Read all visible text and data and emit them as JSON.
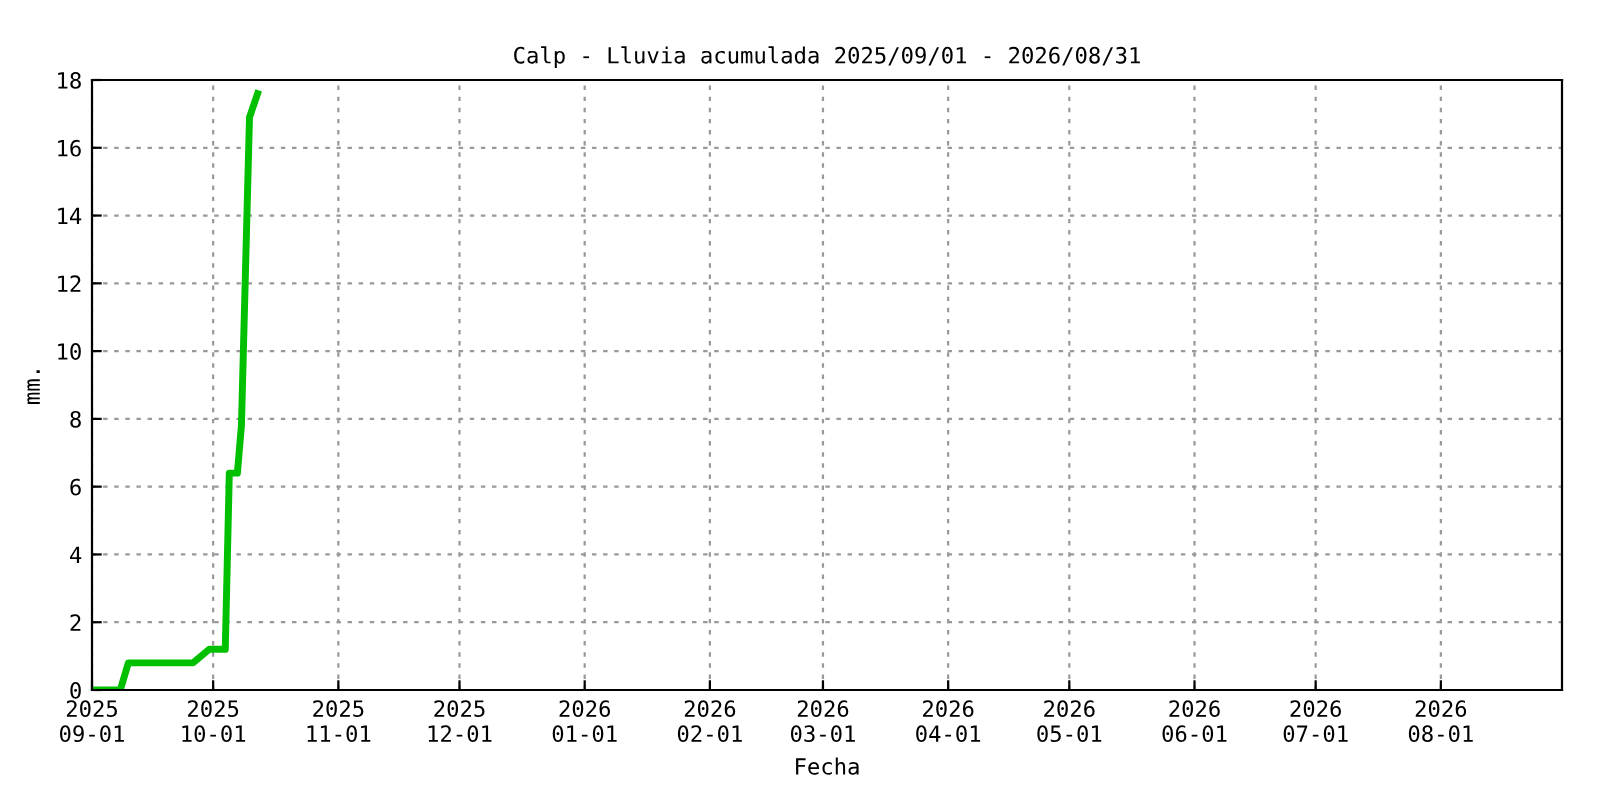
{
  "chart_data": {
    "type": "line",
    "title": "Calp - Lluvia acumulada 2025/09/01 - 2026/08/31",
    "xlabel": "Fecha",
    "ylabel": "mm.",
    "series": [
      {
        "color": "#00c000",
        "x": [
          "2025-09-01",
          "2025-09-08",
          "2025-09-10",
          "2025-09-26",
          "2025-09-30",
          "2025-10-04",
          "2025-10-05",
          "2025-10-07",
          "2025-10-08",
          "2025-10-10",
          "2025-10-12"
        ],
        "values": [
          0,
          0,
          0.8,
          0.8,
          1.2,
          1.2,
          6.4,
          6.4,
          7.8,
          16.9,
          17.6
        ]
      }
    ],
    "xlim": [
      "2025-09-01",
      "2026-08-31"
    ],
    "xticks": [
      {
        "value": "2025-09-01",
        "label": "2025\n09-01"
      },
      {
        "value": "2025-10-01",
        "label": "2025\n10-01"
      },
      {
        "value": "2025-11-01",
        "label": "2025\n11-01"
      },
      {
        "value": "2025-12-01",
        "label": "2025\n12-01"
      },
      {
        "value": "2026-01-01",
        "label": "2026\n01-01"
      },
      {
        "value": "2026-02-01",
        "label": "2026\n02-01"
      },
      {
        "value": "2026-03-01",
        "label": "2026\n03-01"
      },
      {
        "value": "2026-04-01",
        "label": "2026\n04-01"
      },
      {
        "value": "2026-05-01",
        "label": "2026\n05-01"
      },
      {
        "value": "2026-06-01",
        "label": "2026\n06-01"
      },
      {
        "value": "2026-07-01",
        "label": "2026\n07-01"
      },
      {
        "value": "2026-08-01",
        "label": "2026\n08-01"
      }
    ],
    "ylim": [
      0,
      18
    ],
    "yticks": [
      0,
      2,
      4,
      6,
      8,
      10,
      12,
      14,
      16,
      18
    ],
    "grid": true,
    "legend": false
  }
}
